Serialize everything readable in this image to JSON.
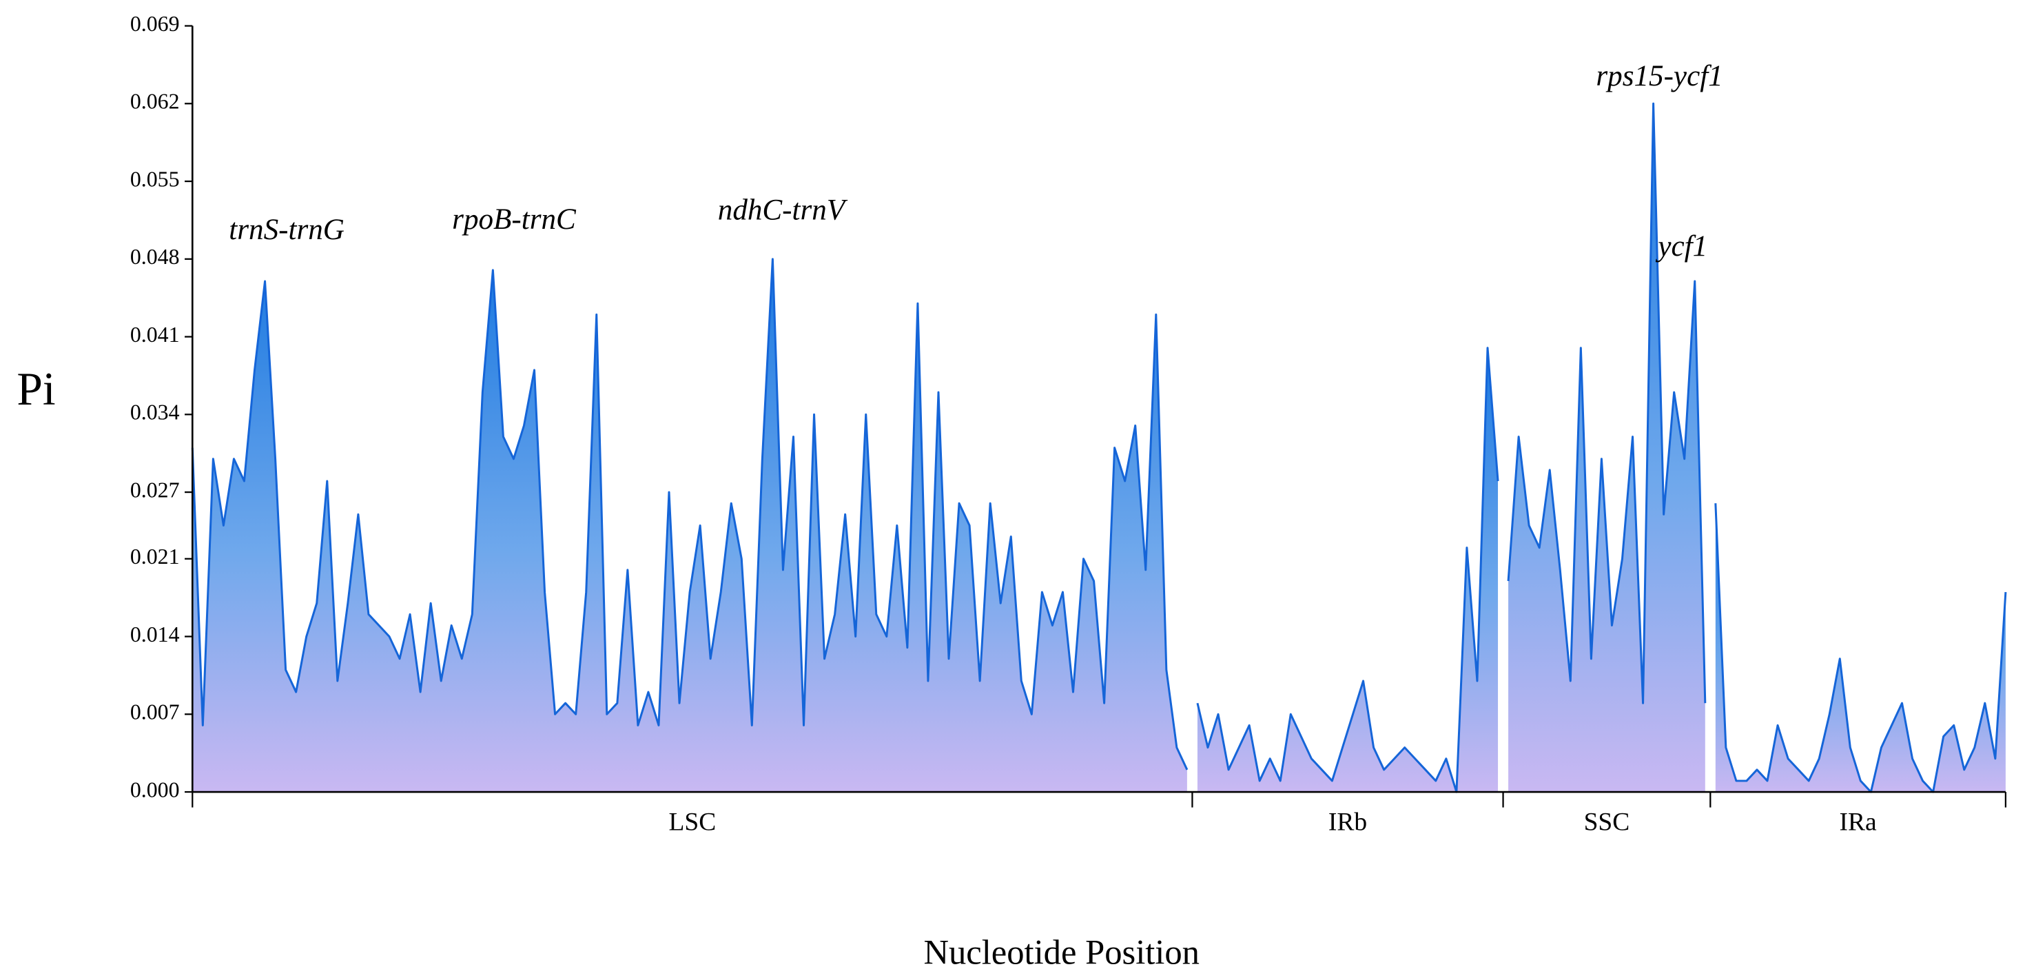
{
  "chart_data": {
    "type": "area",
    "y_label": "Pi",
    "x_label": "Nucleotide Position",
    "ylim": [
      0,
      0.069
    ],
    "yticks": [
      {
        "value": 0,
        "label": "0.000"
      },
      0.007,
      0.014,
      0.021,
      0.027,
      0.034,
      0.041,
      0.048,
      0.055,
      0.062,
      0.069
    ],
    "color": "#1565d8",
    "regions": [
      {
        "name": "LSC",
        "values": [
          0.031,
          0.006,
          0.03,
          0.024,
          0.03,
          0.028,
          0.038,
          0.046,
          0.03,
          0.011,
          0.009,
          0.014,
          0.017,
          0.028,
          0.01,
          0.017,
          0.025,
          0.016,
          0.015,
          0.014,
          0.012,
          0.016,
          0.009,
          0.017,
          0.01,
          0.015,
          0.012,
          0.016,
          0.036,
          0.047,
          0.032,
          0.03,
          0.033,
          0.038,
          0.018,
          0.007,
          0.008,
          0.007,
          0.018,
          0.043,
          0.007,
          0.008,
          0.02,
          0.006,
          0.009,
          0.006,
          0.027,
          0.008,
          0.018,
          0.024,
          0.012,
          0.018,
          0.026,
          0.021,
          0.006,
          0.03,
          0.048,
          0.02,
          0.032,
          0.006,
          0.034,
          0.012,
          0.016,
          0.025,
          0.014,
          0.034,
          0.016,
          0.014,
          0.024,
          0.013,
          0.044,
          0.01,
          0.036,
          0.012,
          0.026,
          0.024,
          0.01,
          0.026,
          0.017,
          0.023,
          0.01,
          0.007,
          0.018,
          0.015,
          0.018,
          0.009,
          0.021,
          0.019,
          0.008,
          0.031,
          0.028,
          0.033,
          0.02,
          0.043,
          0.011,
          0.004,
          0.002
        ]
      },
      {
        "name": "IRb",
        "values": [
          0.008,
          0.004,
          0.007,
          0.002,
          0.004,
          0.006,
          0.001,
          0.003,
          0.001,
          0.007,
          0.005,
          0.003,
          0.002,
          0.001,
          0.004,
          0.007,
          0.01,
          0.004,
          0.002,
          0.003,
          0.004,
          0.003,
          0.002,
          0.001,
          0.003,
          0.0,
          0.022,
          0.01,
          0.04,
          0.028
        ]
      },
      {
        "name": "SSC",
        "values": [
          0.019,
          0.032,
          0.024,
          0.022,
          0.029,
          0.02,
          0.01,
          0.04,
          0.012,
          0.03,
          0.015,
          0.021,
          0.032,
          0.008,
          0.062,
          0.025,
          0.036,
          0.03,
          0.046,
          0.008
        ]
      },
      {
        "name": "IRa",
        "values": [
          0.026,
          0.004,
          0.001,
          0.001,
          0.002,
          0.001,
          0.006,
          0.003,
          0.002,
          0.001,
          0.003,
          0.007,
          0.012,
          0.004,
          0.001,
          0.0,
          0.004,
          0.006,
          0.008,
          0.003,
          0.001,
          0.0,
          0.005,
          0.006,
          0.002,
          0.004,
          0.008,
          0.003,
          0.018
        ]
      }
    ],
    "annotations": [
      "trnS-trnG",
      "rpoB-trnC",
      "ndhC-trnV",
      "rps15-ycf1",
      "ycf1"
    ]
  }
}
